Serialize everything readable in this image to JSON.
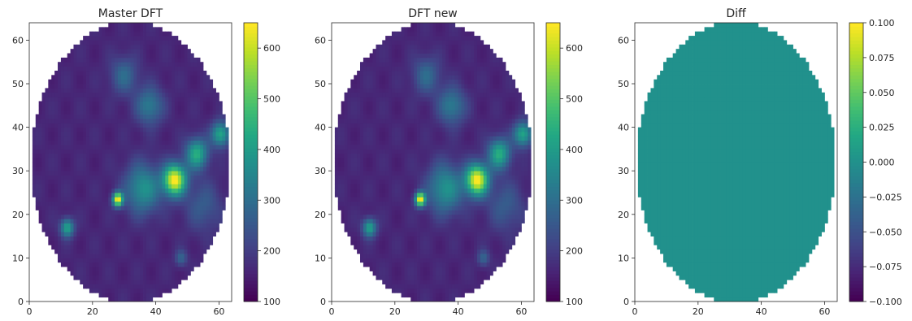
{
  "chart_data": [
    {
      "type": "heatmap",
      "title": "Master DFT",
      "xlabel": "",
      "ylabel": "",
      "xlim": [
        0,
        64
      ],
      "ylim": [
        0,
        64
      ],
      "x_ticks": [
        "0",
        "20",
        "40",
        "60"
      ],
      "y_ticks": [
        "0",
        "10",
        "20",
        "30",
        "40",
        "50",
        "60"
      ],
      "colormap": "viridis",
      "mask": "ellipse",
      "color_range": [
        100,
        650
      ],
      "colorbar_ticks": [
        "100",
        "200",
        "300",
        "400",
        "500",
        "600"
      ],
      "field": {
        "background": 160,
        "features": [
          {
            "x": 46,
            "y": 28,
            "peak": 650,
            "width": 2.5
          },
          {
            "x": 28,
            "y": 23.5,
            "peak": 650,
            "width": 1.1
          },
          {
            "x": 12,
            "y": 17,
            "peak": 420,
            "width": 1.5
          },
          {
            "x": 48,
            "y": 10,
            "peak": 280,
            "width": 1.3
          },
          {
            "x": 60.5,
            "y": 38.5,
            "peak": 430,
            "width": 2.0
          },
          {
            "x": 36,
            "y": 26,
            "peak": 380,
            "width": 4.0
          },
          {
            "x": 38,
            "y": 45,
            "peak": 330,
            "width": 3.0
          },
          {
            "x": 30,
            "y": 52,
            "peak": 290,
            "width": 3.0
          },
          {
            "x": 53,
            "y": 34,
            "peak": 440,
            "width": 2.5
          },
          {
            "x": 55,
            "y": 22,
            "peak": 260,
            "width": 4.0
          }
        ]
      }
    },
    {
      "type": "heatmap",
      "title": "DFT new",
      "xlabel": "",
      "ylabel": "",
      "xlim": [
        0,
        64
      ],
      "ylim": [
        0,
        64
      ],
      "x_ticks": [
        "0",
        "20",
        "40",
        "60"
      ],
      "y_ticks": [
        "0",
        "10",
        "20",
        "30",
        "40",
        "50",
        "60"
      ],
      "colormap": "viridis",
      "mask": "ellipse",
      "color_range": [
        100,
        650
      ],
      "colorbar_ticks": [
        "100",
        "200",
        "300",
        "400",
        "500",
        "600"
      ],
      "field": {
        "background": 160,
        "features": [
          {
            "x": 46,
            "y": 28,
            "peak": 650,
            "width": 2.5
          },
          {
            "x": 28,
            "y": 23.5,
            "peak": 650,
            "width": 1.1
          },
          {
            "x": 12,
            "y": 17,
            "peak": 420,
            "width": 1.5
          },
          {
            "x": 48,
            "y": 10,
            "peak": 280,
            "width": 1.3
          },
          {
            "x": 60.5,
            "y": 38.5,
            "peak": 430,
            "width": 2.0
          },
          {
            "x": 36,
            "y": 26,
            "peak": 380,
            "width": 4.0
          },
          {
            "x": 38,
            "y": 45,
            "peak": 330,
            "width": 3.0
          },
          {
            "x": 30,
            "y": 52,
            "peak": 290,
            "width": 3.0
          },
          {
            "x": 53,
            "y": 34,
            "peak": 440,
            "width": 2.5
          },
          {
            "x": 55,
            "y": 22,
            "peak": 260,
            "width": 4.0
          }
        ]
      }
    },
    {
      "type": "heatmap",
      "title": "Diff",
      "xlabel": "",
      "ylabel": "",
      "xlim": [
        0,
        64
      ],
      "ylim": [
        0,
        64
      ],
      "x_ticks": [
        "0",
        "20",
        "40",
        "60"
      ],
      "y_ticks": [
        "0",
        "10",
        "20",
        "30",
        "40",
        "50",
        "60"
      ],
      "colormap": "viridis",
      "mask": "ellipse",
      "color_range": [
        -0.1,
        0.1
      ],
      "colorbar_ticks": [
        "−0.100",
        "−0.075",
        "−0.050",
        "−0.025",
        "0.000",
        "0.025",
        "0.050",
        "0.075",
        "0.100"
      ],
      "field": {
        "background": 0.0,
        "features": []
      }
    }
  ]
}
